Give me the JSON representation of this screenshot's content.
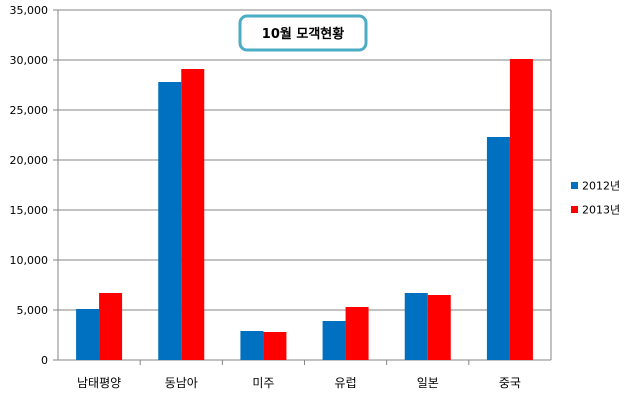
{
  "chart_data": {
    "type": "bar",
    "title": "10월 모객현황",
    "categories": [
      "남태평양",
      "동남아",
      "미주",
      "유럽",
      "일본",
      "중국"
    ],
    "series": [
      {
        "name": "2012년",
        "color": "#0070C0",
        "values": [
          5100,
          27800,
          2900,
          3900,
          6700,
          22300
        ]
      },
      {
        "name": "2013년",
        "color": "#FF0000",
        "values": [
          6700,
          29100,
          2800,
          5300,
          6500,
          30100
        ]
      }
    ],
    "ylim": [
      0,
      35000
    ],
    "yticks": [
      0,
      5000,
      10000,
      15000,
      20000,
      25000,
      30000,
      35000
    ],
    "ytick_labels": [
      "0",
      "5,000",
      "10,000",
      "15,000",
      "20,000",
      "25,000",
      "30,000",
      "35,000"
    ],
    "grid": true,
    "legend_position": "right",
    "title_border_color": "#4BACC6"
  }
}
